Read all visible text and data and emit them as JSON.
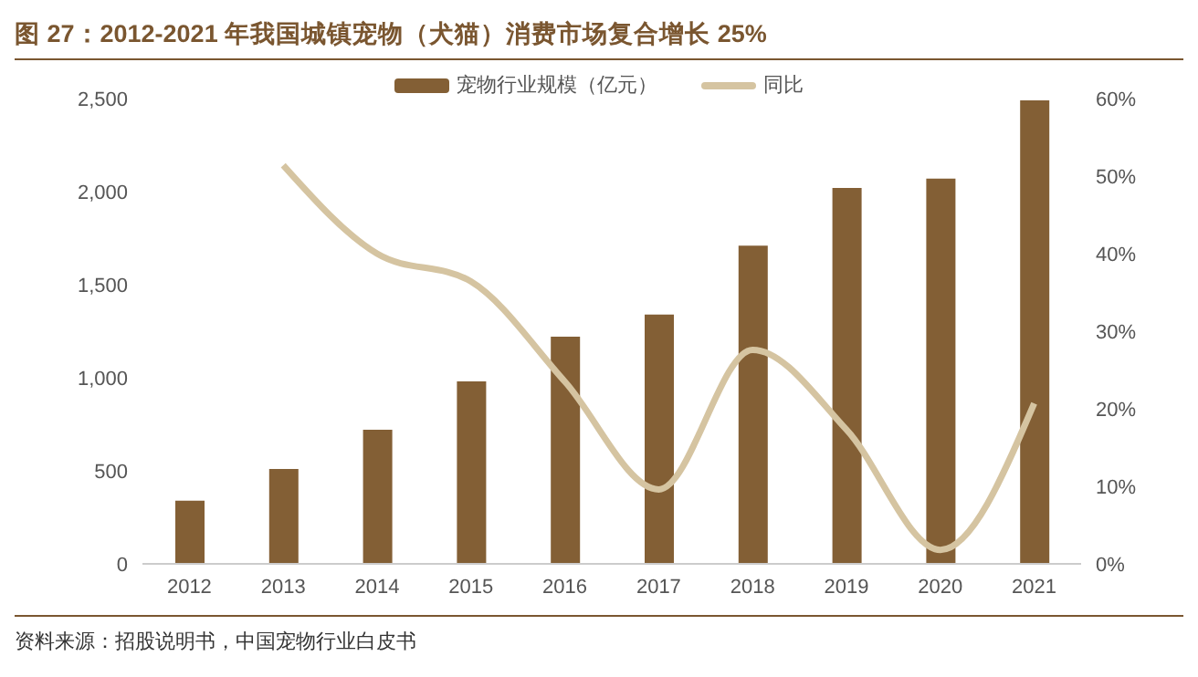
{
  "chart_data": {
    "type": "bar",
    "title": "图 27：2012-2021 年我国城镇宠物（犬猫）消费市场复合增长 25%",
    "categories": [
      "2012",
      "2013",
      "2014",
      "2015",
      "2016",
      "2017",
      "2018",
      "2019",
      "2020",
      "2021"
    ],
    "series": [
      {
        "name": "宠物行业规模（亿元）",
        "color": "#835f35",
        "values": [
          340,
          510,
          720,
          980,
          1220,
          1340,
          1710,
          2020,
          2070,
          2490
        ]
      },
      {
        "name": "同比",
        "type": "line",
        "axis": "y2",
        "color": "#d5c4a1",
        "values": [
          null,
          51.4,
          40,
          36.4,
          23.5,
          9.6,
          27.6,
          17.3,
          1.8,
          20.7
        ]
      }
    ],
    "ylim": [
      0,
      2500
    ],
    "yticks": [
      0,
      500,
      {
        "value": 1000,
        "label": "1,000"
      },
      {
        "value": 1500,
        "label": "1,500"
      },
      {
        "value": 2000,
        "label": "2,000"
      },
      {
        "value": 2500,
        "label": "2,500"
      }
    ],
    "y2lim": [
      0,
      60
    ],
    "y2ticks": [
      {
        "value": 0,
        "label": "0%"
      },
      {
        "value": 10,
        "label": "10%"
      },
      {
        "value": 20,
        "label": "20%"
      },
      {
        "value": 30,
        "label": "30%"
      },
      {
        "value": 40,
        "label": "40%"
      },
      {
        "value": 50,
        "label": "50%"
      },
      {
        "value": 60,
        "label": "60%"
      }
    ],
    "legend": "top",
    "marker": "none",
    "annotations": [
      "资料来源：招股说明书，中国宠物行业白皮书"
    ]
  }
}
